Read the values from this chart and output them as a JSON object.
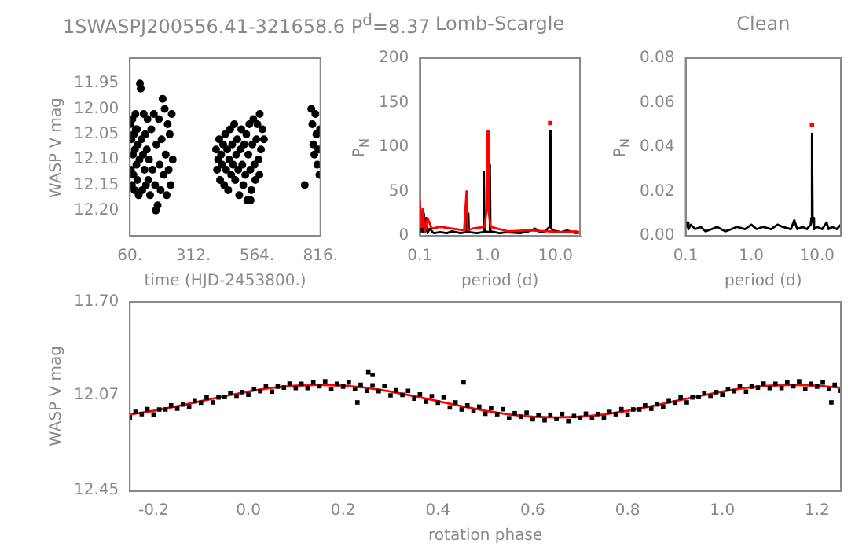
{
  "chart_data": [
    {
      "type": "scatter",
      "title": "1SWASPJ200556.41-321658.6 P$^{d}$=8.37",
      "xlabel": "time (HJD-2453800.)",
      "ylabel": "WASP V mag",
      "xlim": [
        60,
        816
      ],
      "xticks": [
        {
          "value": 60,
          "label": "60."
        },
        {
          "value": 312,
          "label": "312."
        },
        {
          "value": 564,
          "label": "564."
        },
        {
          "value": 816,
          "label": "816."
        }
      ],
      "ylim": [
        12.25,
        11.9
      ],
      "yticks": [
        11.95,
        {
          "value": 12.0,
          "label": "12.00"
        },
        12.05,
        {
          "value": 12.1,
          "label": "12.10"
        },
        12.15,
        {
          "value": 12.2,
          "label": "12.20"
        }
      ],
      "marker": "circle",
      "series": [
        {
          "color": "#000000",
          "x": [
            62,
            64,
            66,
            68,
            70,
            72,
            74,
            76,
            78,
            80,
            82,
            84,
            86,
            88,
            90,
            92,
            95,
            98,
            100,
            103,
            106,
            109,
            112,
            115,
            118,
            121,
            124,
            127,
            130,
            133,
            136,
            140,
            145,
            150,
            155,
            160,
            163,
            165,
            170,
            175,
            178,
            182,
            186,
            190,
            194,
            198,
            202,
            206,
            210,
            214,
            218,
            222,
            226,
            230,
            402,
            406,
            410,
            414,
            418,
            422,
            426,
            430,
            434,
            438,
            442,
            446,
            450,
            454,
            458,
            462,
            466,
            470,
            474,
            478,
            482,
            486,
            490,
            494,
            498,
            502,
            506,
            510,
            514,
            518,
            522,
            526,
            530,
            534,
            538,
            539,
            542,
            546,
            550,
            554,
            558,
            562,
            566,
            570,
            574,
            575,
            580,
            586,
            592,
            754,
            780,
            784,
            788,
            792,
            796,
            800,
            804,
            808,
            812,
            815
          ],
          "values": [
            12.03,
            12.12,
            12.06,
            12.15,
            12.02,
            12.09,
            12.13,
            12.05,
            12.16,
            12.08,
            12.01,
            12.04,
            12.11,
            12.04,
            12.14,
            12.07,
            12.17,
            12.1,
            11.95,
            11.96,
            12.06,
            12.16,
            12.09,
            12.01,
            12.12,
            12.05,
            12.15,
            12.08,
            12.02,
            12.14,
            12.1,
            12.17,
            12.04,
            12.12,
            12.01,
            12.15,
            12.2,
            12.07,
            12.19,
            12.02,
            12.11,
            12.16,
            12.06,
            11.98,
            12.13,
            12.0,
            12.09,
            12.17,
            12.03,
            12.12,
            12.05,
            12.15,
            12.01,
            12.1,
            12.08,
            12.12,
            12.1,
            12.06,
            12.14,
            12.09,
            12.11,
            12.07,
            12.15,
            12.05,
            12.12,
            12.08,
            12.16,
            12.1,
            12.04,
            12.13,
            12.07,
            12.11,
            12.03,
            12.14,
            12.09,
            12.06,
            12.12,
            12.17,
            12.08,
            12.04,
            12.11,
            12.15,
            12.07,
            12.13,
            12.05,
            12.18,
            12.09,
            12.03,
            12.12,
            12.18,
            12.16,
            12.07,
            12.02,
            12.11,
            12.14,
            12.06,
            12.03,
            12.1,
            12.13,
            12.01,
            12.08,
            12.04,
            12.06,
            12.15,
            12.0,
            12.03,
            12.07,
            12.09,
            12.01,
            12.05,
            12.11,
            12.08,
            12.13,
            12.04
          ]
        }
      ]
    },
    {
      "type": "line",
      "title": "Lomb-Scargle",
      "xlabel": "period (d)",
      "ylabel": "P$_{N}$",
      "log": "x",
      "xlim": [
        0.1,
        23
      ],
      "xticks": [
        0.1,
        {
          "value": 1,
          "label": "1.0"
        },
        {
          "value": 10,
          "label": "10.0"
        }
      ],
      "ylim": [
        0,
        200
      ],
      "yticks": [
        0,
        50,
        100,
        150,
        200
      ],
      "marker": "none",
      "series": [
        {
          "color": "#ff0000",
          "x": [
            0.1,
            0.105,
            0.11,
            0.12,
            0.13,
            0.15,
            0.2,
            0.3,
            0.45,
            0.49,
            0.51,
            0.6,
            0.9,
            0.97,
            1.0,
            1.03,
            1.1,
            2,
            4,
            8,
            12,
            20,
            23
          ],
          "values": [
            40,
            10,
            30,
            5,
            20,
            8,
            10,
            8,
            6,
            50,
            6,
            8,
            10,
            30,
            118,
            30,
            10,
            5,
            6,
            5,
            4,
            5,
            3
          ]
        },
        {
          "color": "#000000",
          "x": [
            0.1,
            0.105,
            0.11,
            0.115,
            0.12,
            0.125,
            0.13,
            0.14,
            0.16,
            0.2,
            0.25,
            0.3,
            0.4,
            0.48,
            0.49,
            0.5,
            0.52,
            0.53,
            0.7,
            0.85,
            0.88,
            0.9,
            1.05,
            1.08,
            1.1,
            1.5,
            2,
            3,
            4,
            5,
            6,
            7,
            8.2,
            8.37,
            8.55,
            9,
            12,
            15,
            20,
            23
          ],
          "values": [
            3,
            15,
            4,
            25,
            5,
            20,
            3,
            8,
            3,
            4,
            3,
            5,
            3,
            4,
            28,
            5,
            25,
            4,
            3,
            4,
            72,
            5,
            4,
            80,
            5,
            3,
            4,
            3,
            5,
            8,
            4,
            5,
            10,
            118,
            10,
            6,
            4,
            6,
            3,
            4
          ]
        },
        {
          "type": "scatter",
          "marker": "square",
          "color": "#ff0000",
          "x": [
            8.37
          ],
          "values": [
            127
          ]
        }
      ]
    },
    {
      "type": "line",
      "title": "Clean",
      "xlabel": "period (d)",
      "ylabel": "P$_{N}$",
      "log": "x",
      "xlim": [
        0.1,
        23
      ],
      "xticks": [
        0.1,
        {
          "value": 1,
          "label": "1.0"
        },
        {
          "value": 10,
          "label": "10.0"
        }
      ],
      "ylim": [
        0,
        0.08
      ],
      "yticks": [
        {
          "value": 0,
          "label": "0.00"
        },
        0.02,
        0.04,
        0.06,
        0.08
      ],
      "marker": "none",
      "series": [
        {
          "color": "#000000",
          "x": [
            0.1,
            0.105,
            0.11,
            0.12,
            0.14,
            0.17,
            0.2,
            0.25,
            0.3,
            0.4,
            0.5,
            0.6,
            0.8,
            1.0,
            1.2,
            1.5,
            2,
            2.5,
            3,
            4,
            4.5,
            5,
            6,
            7,
            8,
            8.2,
            8.37,
            8.55,
            9,
            10,
            12,
            14,
            15,
            17,
            20,
            23
          ],
          "values": [
            0.004,
            0.006,
            0.003,
            0.005,
            0.003,
            0.004,
            0.002,
            0.003,
            0.004,
            0.002,
            0.003,
            0.004,
            0.003,
            0.005,
            0.003,
            0.004,
            0.003,
            0.005,
            0.004,
            0.003,
            0.007,
            0.003,
            0.004,
            0.003,
            0.005,
            0.008,
            0.046,
            0.008,
            0.003,
            0.004,
            0.003,
            0.006,
            0.003,
            0.004,
            0.003,
            0.005
          ]
        },
        {
          "type": "scatter",
          "marker": "square",
          "color": "#ff0000",
          "x": [
            8.37
          ],
          "values": [
            0.05
          ]
        }
      ]
    },
    {
      "type": "scatter",
      "xlabel": "rotation phase",
      "ylabel": "WASP V mag",
      "xlim": [
        -0.25,
        1.25
      ],
      "xticks": [
        -0.2,
        {
          "value": 0,
          "label": "0.0"
        },
        0.2,
        0.4,
        0.6,
        0.8,
        {
          "value": 1,
          "label": "1.0"
        },
        1.2
      ],
      "ylim": [
        12.45,
        11.7
      ],
      "yticks": [
        {
          "value": 11.7,
          "label": "11.70"
        },
        12.07,
        12.45
      ],
      "marker": "square",
      "series": [
        {
          "color": "#000000",
          "x": [
            -0.25,
            -0.238,
            -0.225,
            -0.213,
            -0.2,
            -0.188,
            -0.175,
            -0.163,
            -0.15,
            -0.138,
            -0.125,
            -0.113,
            -0.1,
            -0.088,
            -0.075,
            -0.063,
            -0.05,
            -0.038,
            -0.025,
            -0.013,
            0,
            0.012,
            0.025,
            0.037,
            0.05,
            0.062,
            0.075,
            0.087,
            0.1,
            0.112,
            0.125,
            0.137,
            0.15,
            0.162,
            0.175,
            0.187,
            0.2,
            0.212,
            0.225,
            0.237,
            0.25,
            0.262,
            0.275,
            0.287,
            0.3,
            0.312,
            0.325,
            0.337,
            0.35,
            0.362,
            0.375,
            0.387,
            0.4,
            0.412,
            0.425,
            0.437,
            0.45,
            0.462,
            0.475,
            0.487,
            0.5,
            0.512,
            0.525,
            0.537,
            0.55,
            0.562,
            0.575,
            0.587,
            0.6,
            0.612,
            0.625,
            0.637,
            0.65,
            0.662,
            0.675,
            0.687,
            0.7,
            0.712,
            0.725,
            0.737,
            0.75,
            0.762,
            0.775,
            0.787,
            0.8,
            0.812,
            0.825,
            0.837,
            0.85,
            0.862,
            0.875,
            0.887,
            0.9,
            0.912,
            0.925,
            0.937,
            0.95,
            0.962,
            0.975,
            0.987,
            1,
            1.012,
            1.025,
            1.037,
            1.05,
            1.062,
            1.075,
            1.087,
            1.1,
            1.112,
            1.125,
            1.137,
            1.15,
            1.162,
            1.175,
            1.187,
            1.2,
            1.212,
            1.225,
            1.237,
            1.25,
            0.23,
            0.253,
            0.262,
            0.454,
            1.23
          ],
          "values": [
            12.16,
            12.138,
            12.147,
            12.127,
            12.148,
            12.128,
            12.128,
            12.112,
            12.125,
            12.108,
            12.117,
            12.095,
            12.101,
            12.081,
            12.1,
            12.08,
            12.079,
            12.063,
            12.076,
            12.059,
            12.069,
            12.047,
            12.055,
            12.035,
            12.057,
            12.037,
            12.041,
            12.025,
            12.043,
            12.026,
            12.043,
            12.021,
            12.036,
            12.016,
            12.046,
            12.026,
            12.037,
            12.021,
            12.047,
            12.03,
            12.054,
            12.032,
            12.055,
            12.035,
            12.072,
            12.052,
            12.07,
            12.054,
            12.085,
            12.068,
            12.097,
            12.075,
            12.101,
            12.081,
            12.12,
            12.1,
            12.128,
            12.112,
            12.134,
            12.117,
            12.145,
            12.123,
            12.147,
            12.127,
            12.163,
            12.143,
            12.157,
            12.141,
            12.167,
            12.15,
            12.171,
            12.149,
            12.166,
            12.146,
            12.174,
            12.154,
            12.161,
            12.145,
            12.163,
            12.146,
            12.16,
            12.138,
            12.147,
            12.127,
            12.148,
            12.128,
            12.128,
            12.112,
            12.125,
            12.108,
            12.117,
            12.095,
            12.101,
            12.081,
            12.1,
            12.08,
            12.079,
            12.063,
            12.076,
            12.059,
            12.069,
            12.047,
            12.055,
            12.035,
            12.057,
            12.037,
            12.041,
            12.025,
            12.043,
            12.026,
            12.043,
            12.021,
            12.036,
            12.016,
            12.046,
            12.026,
            12.037,
            12.021,
            12.047,
            12.03,
            12.054,
            12.1,
            11.98,
            11.99,
            12.02,
            12.1
          ]
        },
        {
          "type": "line",
          "marker": "none",
          "color": "#ff0000",
          "x": [
            -0.25,
            -0.2,
            -0.15,
            -0.1,
            -0.05,
            0,
            0.05,
            0.1,
            0.15,
            0.2,
            0.25,
            0.3,
            0.35,
            0.4,
            0.45,
            0.5,
            0.55,
            0.6,
            0.65,
            0.7,
            0.75,
            0.8,
            0.85,
            0.9,
            0.95,
            1,
            1.05,
            1.1,
            1.15,
            1.2,
            1.25
          ],
          "values": [
            12.148,
            12.133,
            12.115,
            12.095,
            12.075,
            12.057,
            12.042,
            12.033,
            12.03,
            12.033,
            12.042,
            12.057,
            12.075,
            12.095,
            12.115,
            12.133,
            12.148,
            12.157,
            12.16,
            12.157,
            12.148,
            12.133,
            12.115,
            12.095,
            12.075,
            12.057,
            12.042,
            12.033,
            12.03,
            12.033,
            12.042
          ]
        }
      ]
    }
  ]
}
